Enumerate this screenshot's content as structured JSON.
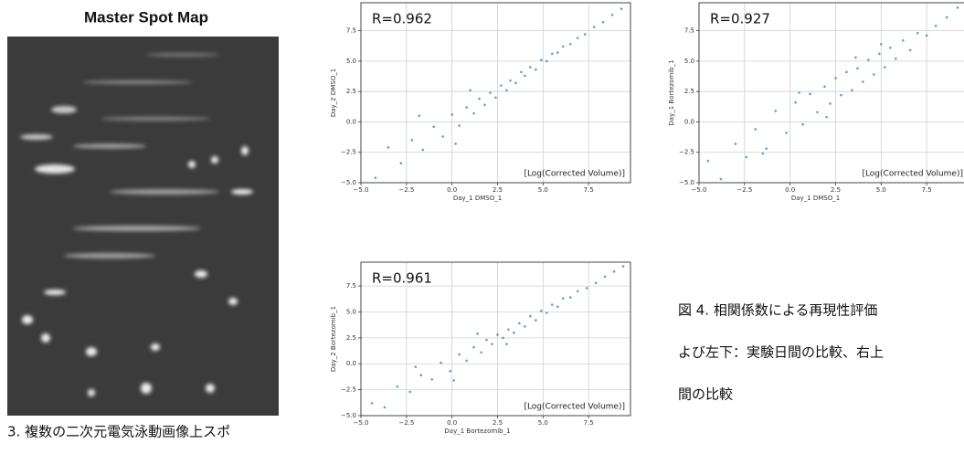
{
  "figure_left": {
    "title": "Master Spot Map",
    "caption": "3. 複数の二次元電気泳動画像上スポ"
  },
  "caption_right": {
    "lines": [
      "図 4. 相関係数による再現性評価",
      "よび左下：実験日間の比較、右上",
      "間の比較"
    ]
  },
  "chart_data": [
    {
      "type": "scatter",
      "annotation": "R=0.962",
      "note": "[Log(Corrected Volume)]",
      "x_label": "Day_1 DMSO_1",
      "y_label": "Day_2 DMSO_1",
      "color": "#1f77b4",
      "grid": true,
      "xlim": [
        -5,
        9.8
      ],
      "ylim": [
        -5,
        9.8
      ],
      "xticks": [
        {
          "value": -5,
          "label": "−5.0"
        },
        {
          "value": -2.5,
          "label": "−2.5"
        },
        {
          "value": 0,
          "label": "0.0"
        },
        2.5,
        {
          "value": 5,
          "label": "5.0"
        },
        7.5
      ],
      "yticks": [
        {
          "value": -5,
          "label": "−5.0"
        },
        {
          "value": -2.5,
          "label": "−2.5"
        },
        {
          "value": 0,
          "label": "0.0"
        },
        2.5,
        {
          "value": 5,
          "label": "5.0"
        },
        7.5
      ],
      "x": [
        -4.2,
        -3.5,
        -2.8,
        -2.2,
        -1.6,
        -1.0,
        -0.5,
        0.0,
        0.4,
        0.8,
        1.2,
        1.5,
        1.8,
        2.1,
        2.4,
        2.7,
        3.0,
        3.2,
        3.5,
        3.8,
        4.0,
        4.3,
        4.6,
        4.9,
        5.2,
        5.5,
        5.8,
        6.1,
        6.5,
        6.9,
        7.3,
        7.8,
        8.3,
        8.8,
        9.3,
        -1.8,
        0.2,
        1.0
      ],
      "y": [
        -4.6,
        -2.1,
        -3.4,
        -1.5,
        -2.3,
        -0.4,
        -1.2,
        0.6,
        -0.3,
        1.2,
        0.7,
        1.9,
        1.4,
        2.4,
        2.0,
        3.0,
        2.6,
        3.4,
        3.2,
        4.1,
        3.8,
        4.5,
        4.3,
        5.1,
        5.0,
        5.6,
        5.7,
        6.2,
        6.4,
        6.9,
        7.2,
        7.8,
        8.2,
        8.8,
        9.3,
        0.5,
        -1.8,
        2.6
      ]
    },
    {
      "type": "scatter",
      "annotation": "R=0.927",
      "note": "[Log(Corrected Volume)]",
      "x_label": "Day_1 DMSO_1",
      "y_label": "Day_1 Bortezomib_1",
      "color": "#1f77b4",
      "grid": true,
      "xlim": [
        -5,
        9.8
      ],
      "ylim": [
        -5,
        9.8
      ],
      "xticks": [
        {
          "value": -5,
          "label": "−5.0"
        },
        {
          "value": -2.5,
          "label": "−2.5"
        },
        {
          "value": 0,
          "label": "0.0"
        },
        2.5,
        {
          "value": 5,
          "label": "5.0"
        },
        7.5
      ],
      "yticks": [
        {
          "value": -5,
          "label": "−5.0"
        },
        {
          "value": -2.5,
          "label": "−2.5"
        },
        {
          "value": 0,
          "label": "0.0"
        },
        2.5,
        {
          "value": 5,
          "label": "5.0"
        },
        7.5
      ],
      "x": [
        -4.5,
        -3.8,
        -3.0,
        -2.4,
        -1.9,
        -1.3,
        -0.8,
        -0.2,
        0.3,
        0.7,
        1.1,
        1.5,
        1.9,
        2.2,
        2.5,
        2.8,
        3.1,
        3.4,
        3.7,
        4.0,
        4.3,
        4.6,
        4.9,
        5.2,
        5.5,
        5.8,
        6.2,
        6.6,
        7.0,
        7.5,
        8.0,
        8.6,
        9.2,
        -1.5,
        0.5,
        2.0,
        3.6,
        5.0
      ],
      "y": [
        -3.2,
        -4.7,
        -1.8,
        -2.9,
        -0.6,
        -2.2,
        0.9,
        -0.9,
        1.6,
        -0.2,
        2.3,
        0.8,
        2.9,
        1.5,
        3.6,
        2.2,
        4.1,
        2.6,
        4.4,
        3.3,
        5.1,
        3.9,
        5.6,
        4.5,
        6.1,
        5.2,
        6.7,
        5.9,
        7.3,
        7.1,
        7.9,
        8.6,
        9.4,
        -2.6,
        2.4,
        0.4,
        5.3,
        6.4
      ]
    },
    {
      "type": "scatter",
      "annotation": "R=0.961",
      "note": "[Log(Corrected Volume)]",
      "x_label": "Day_1 Bortezomib_1",
      "y_label": "Day_2 Bortezomib_1",
      "color": "#1f77b4",
      "grid": true,
      "xlim": [
        -5,
        9.8
      ],
      "ylim": [
        -5,
        9.8
      ],
      "xticks": [
        {
          "value": -5,
          "label": "−5.0"
        },
        {
          "value": -2.5,
          "label": "−2.5"
        },
        {
          "value": 0,
          "label": "0.0"
        },
        2.5,
        {
          "value": 5,
          "label": "5.0"
        },
        7.5
      ],
      "yticks": [
        {
          "value": -5,
          "label": "−5.0"
        },
        {
          "value": -2.5,
          "label": "−2.5"
        },
        {
          "value": 0,
          "label": "0.0"
        },
        2.5,
        {
          "value": 5,
          "label": "5.0"
        },
        7.5
      ],
      "x": [
        -4.4,
        -3.7,
        -3.0,
        -2.3,
        -1.7,
        -1.1,
        -0.6,
        -0.1,
        0.4,
        0.8,
        1.2,
        1.6,
        1.9,
        2.2,
        2.5,
        2.8,
        3.1,
        3.4,
        3.7,
        4.0,
        4.3,
        4.6,
        4.9,
        5.2,
        5.5,
        5.8,
        6.1,
        6.5,
        6.9,
        7.4,
        7.9,
        8.4,
        8.9,
        9.4,
        -2.0,
        0.1,
        1.4,
        3.0
      ],
      "y": [
        -3.8,
        -4.2,
        -2.2,
        -2.7,
        -1.1,
        -1.5,
        0.1,
        -0.7,
        0.9,
        0.3,
        1.6,
        1.1,
        2.3,
        1.9,
        2.8,
        2.5,
        3.3,
        3.0,
        3.9,
        3.6,
        4.6,
        4.2,
        5.1,
        4.9,
        5.7,
        5.5,
        6.3,
        6.4,
        7.0,
        7.3,
        7.8,
        8.4,
        8.9,
        9.4,
        -0.3,
        -1.6,
        2.9,
        1.9
      ]
    }
  ]
}
